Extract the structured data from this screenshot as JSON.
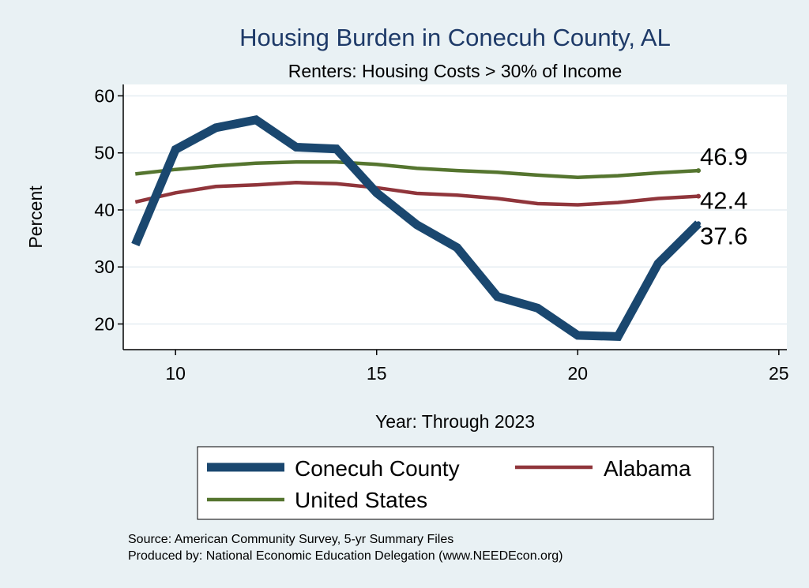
{
  "chart_data": {
    "type": "line",
    "title": "Housing Burden in Conecuh County, AL",
    "subtitle": "Renters: Housing Costs > 30% of Income",
    "xlabel": "Year: Through 2023",
    "ylabel": "Percent",
    "xlim": [
      8.7,
      25.2
    ],
    "ylim": [
      15.5,
      62
    ],
    "xticks": [
      10,
      15,
      20,
      25
    ],
    "yticks": [
      20,
      30,
      40,
      50,
      60
    ],
    "grid": true,
    "legend_position": "bottom",
    "x": [
      9,
      10,
      11,
      12,
      13,
      14,
      15,
      16,
      17,
      18,
      19,
      20,
      21,
      22,
      23
    ],
    "series": [
      {
        "name": "Conecuh County",
        "color": "#1a476f",
        "values": [
          33.9,
          50.6,
          54.4,
          55.8,
          51.0,
          50.7,
          43.0,
          37.4,
          33.4,
          24.8,
          22.8,
          18.0,
          17.8,
          30.6,
          37.6
        ],
        "end_label": "37.6"
      },
      {
        "name": "Alabama",
        "color": "#90353b",
        "values": [
          41.4,
          43.0,
          44.1,
          44.4,
          44.8,
          44.6,
          43.9,
          42.9,
          42.6,
          42.0,
          41.1,
          40.9,
          41.3,
          42.0,
          42.4
        ],
        "end_label": "42.4"
      },
      {
        "name": "United States",
        "color": "#55752f",
        "values": [
          46.3,
          47.1,
          47.7,
          48.2,
          48.4,
          48.4,
          48.0,
          47.3,
          46.9,
          46.6,
          46.1,
          45.7,
          46.0,
          46.5,
          46.9
        ],
        "end_label": "46.9"
      }
    ]
  },
  "source_lines": [
    "Source: American Community Survey, 5-yr Summary Files",
    "Produced by: National Economic Education Delegation (www.NEEDEcon.org)"
  ]
}
